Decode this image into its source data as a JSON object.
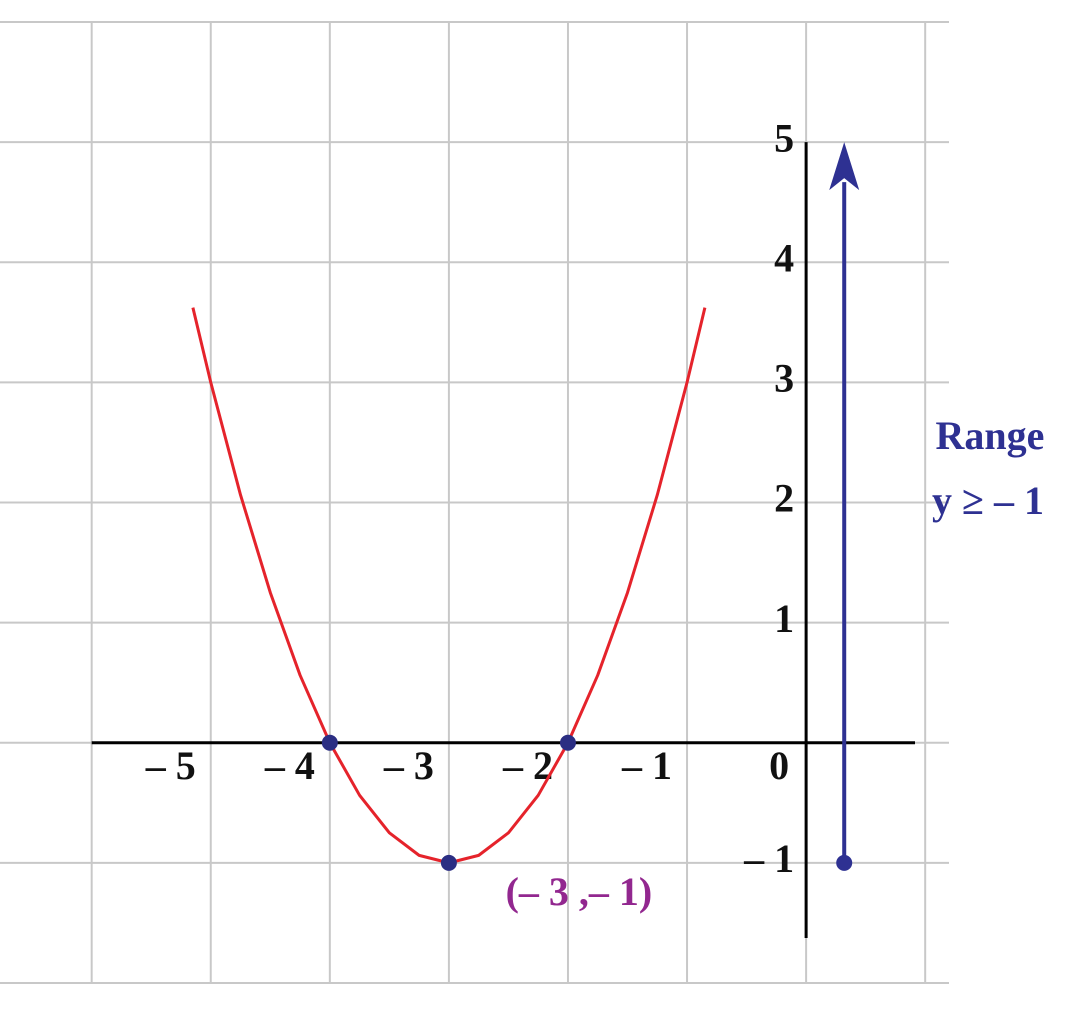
{
  "chart_data": {
    "type": "line",
    "xlim": [
      -6.77,
      1.2
    ],
    "ylim": [
      -2,
      6
    ],
    "xticks": [
      {
        "value": -6,
        "label": ""
      },
      {
        "value": -5,
        "label": "– 5"
      },
      {
        "value": -4,
        "label": "– 4"
      },
      {
        "value": -3,
        "label": "– 3"
      },
      {
        "value": -2,
        "label": "– 2"
      },
      {
        "value": -1,
        "label": "– 1"
      },
      0,
      {
        "value": 1,
        "label": ""
      }
    ],
    "yticks": [
      {
        "value": -2,
        "label": ""
      },
      {
        "value": -1,
        "label": "– 1"
      },
      {
        "value": 0,
        "label": ""
      },
      1,
      2,
      3,
      4,
      5,
      {
        "value": 6,
        "label": ""
      }
    ],
    "grid": true,
    "series": [
      {
        "color": "#e5232b",
        "x": [
          -5.15,
          -5,
          -4.75,
          -4.5,
          -4.25,
          -4,
          -3.75,
          -3.5,
          -3.25,
          -3,
          -2.75,
          -2.5,
          -2.25,
          -2,
          -1.75,
          -1.5,
          -1.25,
          -1,
          -0.85
        ],
        "values": [
          3.6225,
          3,
          2.0625,
          1.25,
          0.5625,
          0,
          -0.4375,
          -0.75,
          -0.9375,
          -1,
          -0.9375,
          -0.75,
          -0.4375,
          0,
          0.5625,
          1.25,
          2.0625,
          3,
          3.6225
        ]
      }
    ],
    "points": [
      {
        "x": -4,
        "y": 0
      },
      {
        "x": -2,
        "y": 0
      },
      {
        "x": -3,
        "y": -1,
        "label": "(– 3 ,– 1)"
      }
    ],
    "point_color": "#2b2e83",
    "label_color": "#92278f",
    "range": {
      "x": 0.32,
      "from": -1,
      "to": 5,
      "color": "#2e3192",
      "title": "Range",
      "label": "y ≥ – 1"
    }
  }
}
